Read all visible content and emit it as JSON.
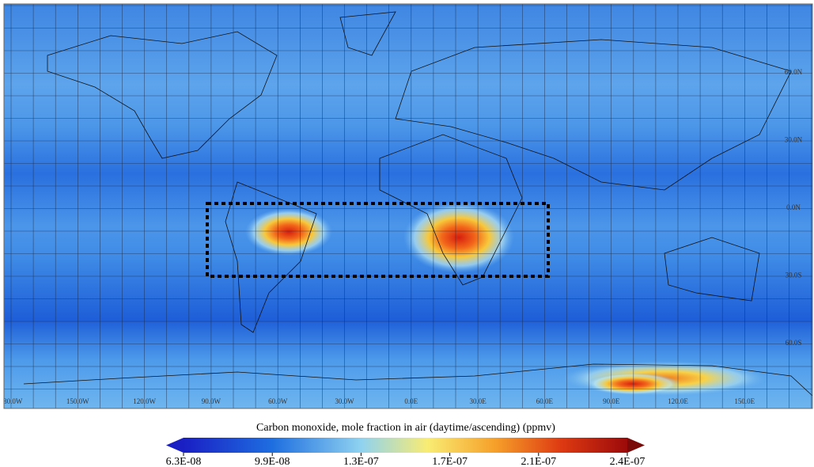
{
  "map": {
    "lon_labels": [
      "180.0W",
      "150.0W",
      "120.0W",
      "90.0W",
      "60.0W",
      "30.0W",
      "0.0E",
      "30.0E",
      "60.0E",
      "90.0E",
      "120.0E",
      "150.0E"
    ],
    "lat_labels": [
      "60.0N",
      "30.0N",
      "0.0N",
      "30.0S",
      "60.0S"
    ]
  },
  "colorbar": {
    "title": "Carbon monoxide, mole fraction in air (daytime/ascending) (ppmv)",
    "tick_labels": [
      "6.3E-08",
      "9.9E-08",
      "1.3E-07",
      "1.7E-07",
      "2.1E-07",
      "2.4E-07"
    ]
  }
}
